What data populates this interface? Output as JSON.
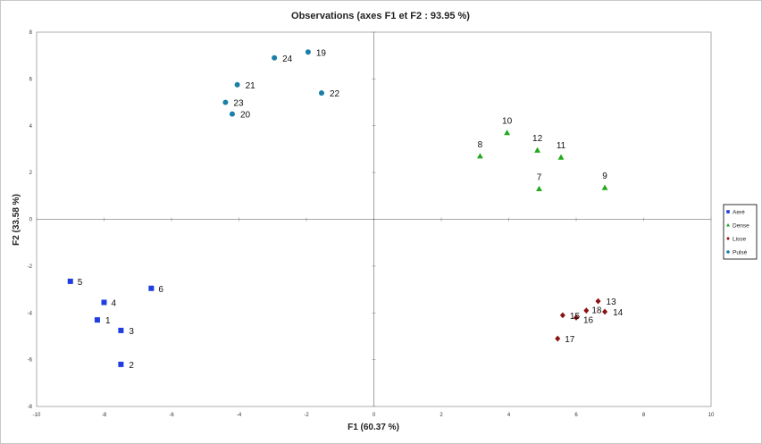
{
  "chart_data": {
    "type": "scatter",
    "title": "Observations (axes F1 et F2 : 93.95 %)",
    "xlabel": "F1 (60.37 %)",
    "ylabel": "F2 (33.58 %)",
    "xlim": [
      -10,
      10
    ],
    "ylim": [
      -8,
      8
    ],
    "x_ticks": [
      "-10",
      "-8",
      "-6",
      "-4",
      "-2",
      "0",
      "2",
      "4",
      "6",
      "8",
      "10"
    ],
    "y_ticks": [
      "-8",
      "-6",
      "-4",
      "-2",
      "0",
      "2",
      "4",
      "6",
      "8"
    ],
    "grid": false,
    "legend_position": "right",
    "series": [
      {
        "name": "Aeré",
        "marker": "square",
        "color": "#1f3de0",
        "points": [
          {
            "label": "1",
            "x": -8.2,
            "y": -4.3
          },
          {
            "label": "2",
            "x": -7.5,
            "y": -6.2
          },
          {
            "label": "3",
            "x": -7.5,
            "y": -4.75
          },
          {
            "label": "4",
            "x": -8.0,
            "y": -3.55
          },
          {
            "label": "5",
            "x": -9.0,
            "y": -2.65
          },
          {
            "label": "6",
            "x": -6.6,
            "y": -2.95
          }
        ]
      },
      {
        "name": "Dense",
        "marker": "triangle",
        "color": "#22a81e",
        "points": [
          {
            "label": "7",
            "x": 4.9,
            "y": 1.3
          },
          {
            "label": "8",
            "x": 3.15,
            "y": 2.7
          },
          {
            "label": "9",
            "x": 6.85,
            "y": 1.35
          },
          {
            "label": "10",
            "x": 3.95,
            "y": 3.7
          },
          {
            "label": "11",
            "x": 5.55,
            "y": 2.65
          },
          {
            "label": "12",
            "x": 4.85,
            "y": 2.95
          }
        ]
      },
      {
        "name": "Lisse",
        "marker": "diamond",
        "color": "#8b1212",
        "points": [
          {
            "label": "13",
            "x": 6.65,
            "y": -3.5
          },
          {
            "label": "14",
            "x": 6.85,
            "y": -3.95
          },
          {
            "label": "15",
            "x": 5.6,
            "y": -4.1
          },
          {
            "label": "16",
            "x": 6.0,
            "y": -4.2
          },
          {
            "label": "17",
            "x": 5.45,
            "y": -5.1
          },
          {
            "label": "18",
            "x": 6.3,
            "y": -3.9
          }
        ]
      },
      {
        "name": "Pulsé",
        "marker": "circle",
        "color": "#1a7fa8",
        "points": [
          {
            "label": "19",
            "x": -1.95,
            "y": 7.15
          },
          {
            "label": "20",
            "x": -4.2,
            "y": 4.5
          },
          {
            "label": "21",
            "x": -4.05,
            "y": 5.75
          },
          {
            "label": "22",
            "x": -1.55,
            "y": 5.4
          },
          {
            "label": "23",
            "x": -4.4,
            "y": 5.0
          },
          {
            "label": "24",
            "x": -2.95,
            "y": 6.9
          }
        ]
      }
    ]
  }
}
